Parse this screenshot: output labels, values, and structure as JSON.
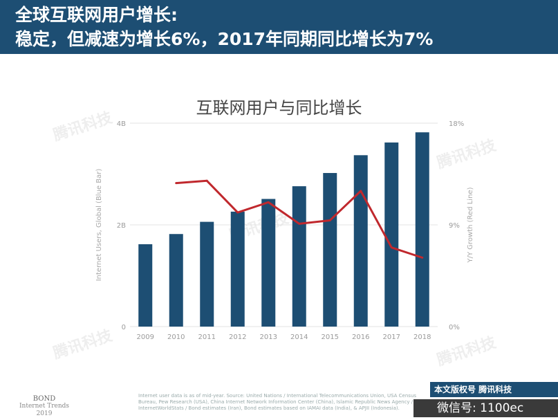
{
  "header": {
    "line1": "全球互联网用户增长:",
    "line2": "稳定，但减速为增长6%，2017年同期同比增长为7%"
  },
  "watermark_text": "腾讯科技",
  "chart_data": {
    "type": "bar",
    "title": "互联网用户与同比增长",
    "categories": [
      "2009",
      "2010",
      "2011",
      "2012",
      "2013",
      "2014",
      "2015",
      "2016",
      "2017",
      "2018"
    ],
    "series": [
      {
        "name": "Internet Users, Global (Blue Bar)",
        "type": "bar",
        "axis": "left",
        "color": "#1d4e73",
        "values": [
          1.62,
          1.82,
          2.06,
          2.26,
          2.51,
          2.76,
          3.02,
          3.37,
          3.62,
          3.82
        ]
      },
      {
        "name": "Y/Y Growth (Red Line)",
        "type": "line",
        "axis": "right",
        "color": "#c0282d",
        "values": [
          null,
          12.7,
          12.9,
          10.1,
          11.0,
          9.1,
          9.4,
          12.0,
          7.0,
          6.1
        ]
      }
    ],
    "y_left": {
      "label": "Internet Users, Global (Blue Bar)",
      "ticks": [
        "0",
        "2B",
        "4B"
      ],
      "tick_values": [
        0,
        2,
        4
      ],
      "ylim": [
        0,
        4
      ]
    },
    "y_right": {
      "label": "Y/Y Growth (Red Line)",
      "ticks": [
        "0%",
        "9%",
        "18%"
      ],
      "tick_values": [
        0,
        9,
        18
      ],
      "ylim": [
        0,
        18
      ]
    },
    "grid": true
  },
  "footer": {
    "bond_line1": "BOND",
    "bond_line2": "Internet Trends",
    "bond_line3": "2019",
    "source_text": "Internet user data is as of mid-year. Source: United Nations / International Telecommunications Union, USA Census Bureau, Pew Research (USA), China Internet Network Information Center (China), Islamic Republic News Agency / InternetWorldStats / Bond estimates (Iran), Bond estimates based on IAMAI data (India), & APJII (Indonesia).",
    "brand": "本文版权号 腾讯科技",
    "wechat": "微信号: 1100ec"
  }
}
